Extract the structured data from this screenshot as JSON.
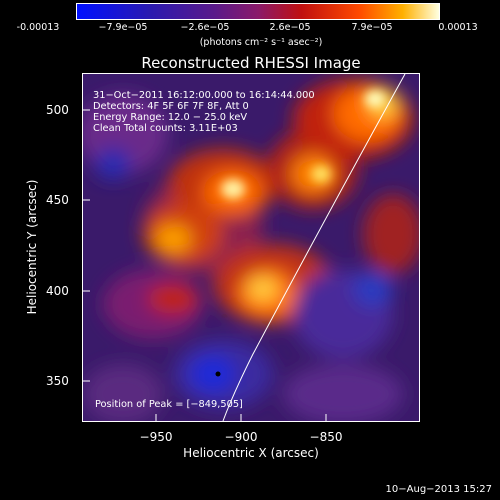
{
  "colorbar": {
    "tick_labels": [
      "-0.00013",
      "−7.9e−05",
      "−2.6e−05",
      "2.6e−05",
      "7.9e−05",
      "0.00013"
    ],
    "units": "(photons cm⁻² s⁻¹ asec⁻²)"
  },
  "plot": {
    "title": "Reconstructed RHESSI Image",
    "info_lines": [
      "31−Oct−2011 16:12:00.000 to 16:14:44.000",
      "Detectors: 4F 5F 6F 7F 8F, Att 0",
      "Energy Range: 12.0 − 25.0 keV",
      "Clean    Total counts: 3.11E+03"
    ],
    "peak_label": "Position of Peak = [−849,505]",
    "xlabel": "Heliocentric X (arcsec)",
    "ylabel": "Heliocentric Y (arcsec)",
    "x_ticks": [
      "−950",
      "−900",
      "−850"
    ],
    "y_ticks": [
      "500",
      "450",
      "400",
      "350"
    ]
  },
  "footer": {
    "date": "10−Aug−2013 15:27"
  },
  "colors": {
    "background": "#000000",
    "foreground": "#ffffff"
  }
}
